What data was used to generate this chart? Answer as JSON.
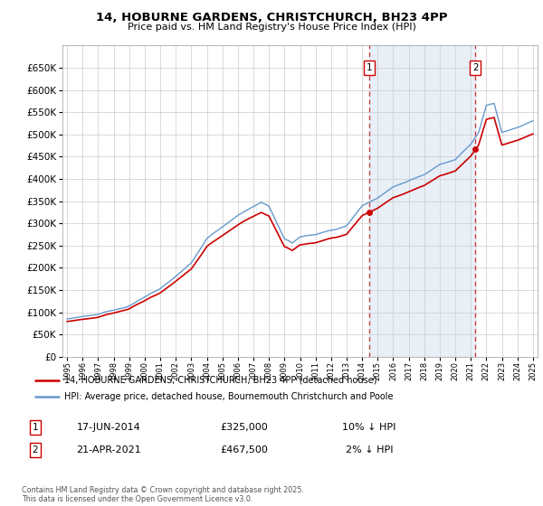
{
  "title": "14, HOBURNE GARDENS, CHRISTCHURCH, BH23 4PP",
  "subtitle": "Price paid vs. HM Land Registry's House Price Index (HPI)",
  "legend_line1": "14, HOBURNE GARDENS, CHRISTCHURCH, BH23 4PP (detached house)",
  "legend_line2": "HPI: Average price, detached house, Bournemouth Christchurch and Poole",
  "annotation1_date": "17-JUN-2014",
  "annotation1_price": "£325,000",
  "annotation1_hpi": "10% ↓ HPI",
  "annotation2_date": "21-APR-2021",
  "annotation2_price": "£467,500",
  "annotation2_hpi": "2% ↓ HPI",
  "footer": "Contains HM Land Registry data © Crown copyright and database right 2025.\nThis data is licensed under the Open Government Licence v3.0.",
  "house_color": "#cc0000",
  "hpi_color": "#6699cc",
  "hpi_fill_color": "#ddeeff",
  "ylim_min": 0,
  "ylim_max": 700000,
  "purchase1_year": 2014.46,
  "purchase2_year": 2021.3,
  "purchase1_price": 325000,
  "purchase2_price": 467500
}
